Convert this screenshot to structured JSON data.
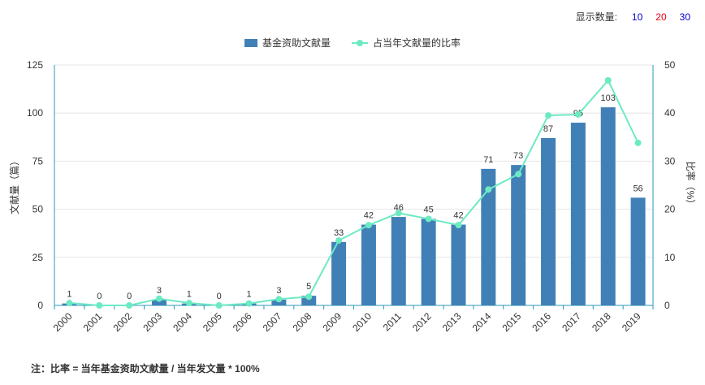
{
  "controls": {
    "label": "显示数量:",
    "options": [
      {
        "text": "10",
        "color": "#0000cc"
      },
      {
        "text": "20",
        "color": "#e60012"
      },
      {
        "text": "30",
        "color": "#0000cc"
      }
    ]
  },
  "legend": {
    "bar": "基金资助文献量",
    "line": "占当年文献量的比率"
  },
  "note": "注：比率 = 当年基金资助文献量 / 当年发文量 * 100%",
  "colors": {
    "bar": "#4180b6",
    "line": "#6ceac4",
    "axis": "#2a9ab8",
    "grid": "#e6e6e6"
  },
  "chart_data": {
    "type": "bar",
    "categories": [
      "2000",
      "2001",
      "2002",
      "2003",
      "2004",
      "2005",
      "2006",
      "2007",
      "2008",
      "2009",
      "2010",
      "2011",
      "2012",
      "2013",
      "2014",
      "2015",
      "2016",
      "2017",
      "2018",
      "2019"
    ],
    "series": [
      {
        "name": "基金资助文献量",
        "type": "bar",
        "axis": "left",
        "values": [
          1,
          0,
          0,
          3,
          1,
          0,
          1,
          3,
          5,
          33,
          42,
          46,
          45,
          42,
          71,
          73,
          87,
          95,
          103,
          56
        ]
      },
      {
        "name": "占当年文献量的比率",
        "type": "line",
        "axis": "right",
        "values": [
          0.5,
          0,
          0,
          1.4,
          0.5,
          0,
          0.4,
          1.3,
          1.8,
          13.5,
          16.7,
          19.2,
          18.0,
          16.7,
          24.1,
          27.3,
          39.5,
          39.7,
          46.8,
          33.8
        ]
      }
    ],
    "ylabel": "文献量（篇）",
    "y2label": "比率（%）",
    "ylim": [
      0,
      125
    ],
    "yticks": [
      0,
      25,
      50,
      75,
      100,
      125
    ],
    "y2lim": [
      0,
      50
    ],
    "y2ticks": [
      0,
      10,
      20,
      30,
      40,
      50
    ],
    "grid": true,
    "legend_position": "top-center"
  }
}
